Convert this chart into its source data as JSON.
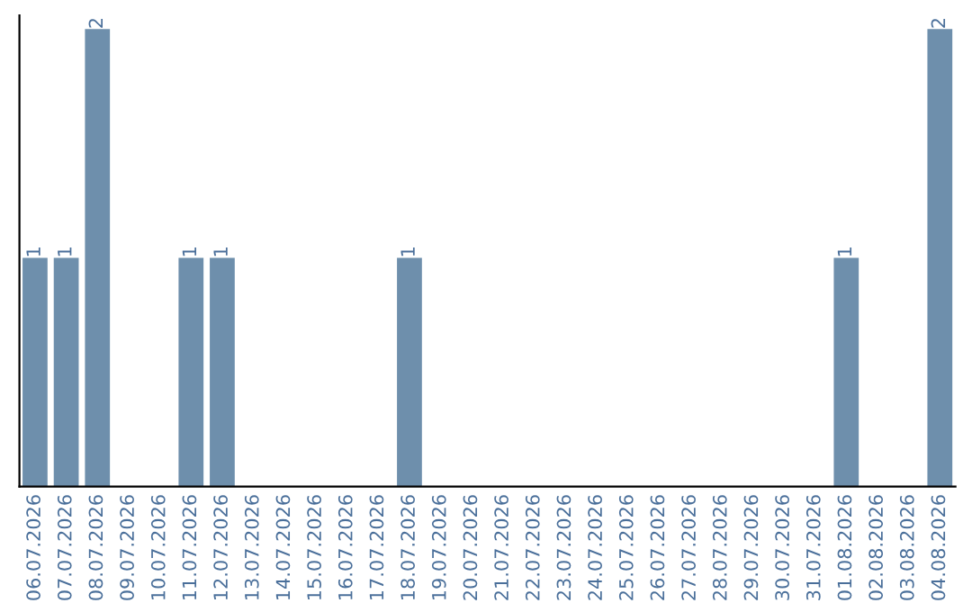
{
  "chart_data": {
    "type": "bar",
    "categories": [
      "06.07.2026",
      "07.07.2026",
      "08.07.2026",
      "09.07.2026",
      "10.07.2026",
      "11.07.2026",
      "12.07.2026",
      "13.07.2026",
      "14.07.2026",
      "15.07.2026",
      "16.07.2026",
      "17.07.2026",
      "18.07.2026",
      "19.07.2026",
      "20.07.2026",
      "21.07.2026",
      "22.07.2026",
      "23.07.2026",
      "24.07.2026",
      "25.07.2026",
      "26.07.2026",
      "27.07.2026",
      "28.07.2026",
      "29.07.2026",
      "30.07.2026",
      "31.07.2026",
      "01.08.2026",
      "02.08.2026",
      "03.08.2026",
      "04.08.2026"
    ],
    "values": [
      1,
      1,
      2,
      0,
      0,
      1,
      1,
      0,
      0,
      0,
      0,
      0,
      1,
      0,
      0,
      0,
      0,
      0,
      0,
      0,
      0,
      0,
      0,
      0,
      0,
      0,
      1,
      0,
      0,
      2
    ],
    "value_labels": [
      "1",
      "1",
      "2",
      null,
      null,
      "1",
      "1",
      null,
      null,
      null,
      null,
      null,
      "1",
      null,
      null,
      null,
      null,
      null,
      null,
      null,
      null,
      null,
      null,
      null,
      null,
      null,
      "1",
      null,
      null,
      "2"
    ],
    "color": "#6e8fac",
    "tick_labels": "x",
    "grid": false,
    "legend": false
  }
}
